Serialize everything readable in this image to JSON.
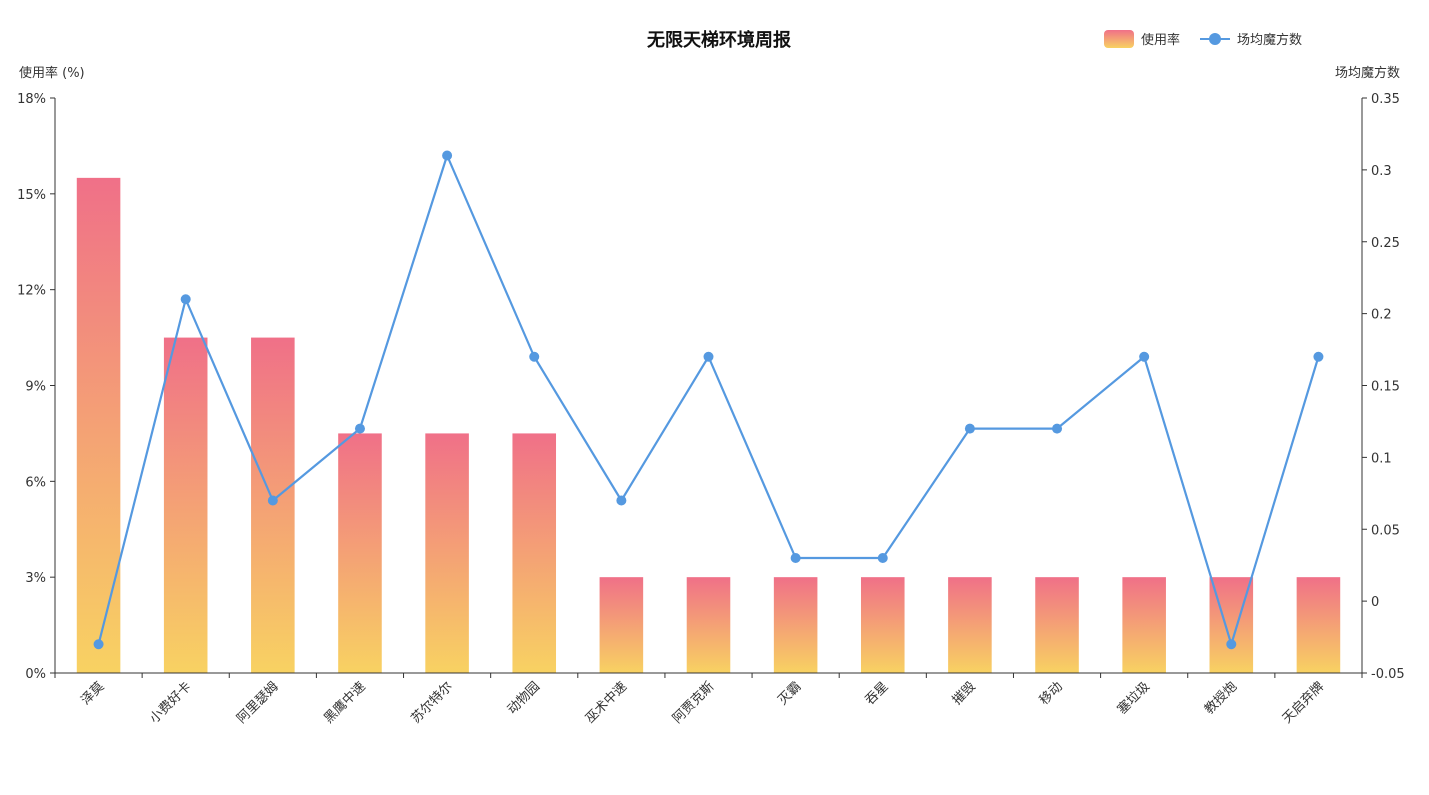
{
  "chart_data": {
    "type": "bar",
    "title": "无限天梯环境周报",
    "categories": [
      "泽莫",
      "小费好卡",
      "阿里瑟姆",
      "黑鹰中速",
      "苏尔特尔",
      "动物园",
      "巫术中速",
      "阿贾克斯",
      "灭霸",
      "吞星",
      "摧毁",
      "移动",
      "塞垃圾",
      "教授炮",
      "天启弃牌"
    ],
    "series": [
      {
        "name": "使用率",
        "type": "bar",
        "axis": "left",
        "values": [
          15.5,
          10.5,
          10.5,
          7.5,
          7.5,
          7.5,
          3.0,
          3.0,
          3.0,
          3.0,
          3.0,
          3.0,
          3.0,
          3.0,
          3.0
        ]
      },
      {
        "name": "场均魔方数",
        "type": "line",
        "axis": "right",
        "values": [
          -0.03,
          0.21,
          0.07,
          0.12,
          0.31,
          0.17,
          0.07,
          0.17,
          0.03,
          0.03,
          0.12,
          0.12,
          0.17,
          -0.03,
          0.17
        ]
      }
    ],
    "y_left": {
      "label": "使用率 (%)",
      "ylim": [
        0,
        18
      ],
      "ticks": [
        0,
        3,
        6,
        9,
        12,
        15,
        18
      ],
      "tick_labels": [
        "0%",
        "3%",
        "6%",
        "9%",
        "12%",
        "15%",
        "18%"
      ]
    },
    "y_right": {
      "label": "场均魔方数",
      "ylim": [
        -0.05,
        0.35
      ],
      "ticks": [
        -0.05,
        0,
        0.05,
        0.1,
        0.15,
        0.2,
        0.25,
        0.3,
        0.35
      ],
      "tick_labels": [
        "-0.05",
        "0",
        "0.05",
        "0.1",
        "0.15",
        "0.2",
        "0.25",
        "0.3",
        "0.35"
      ]
    },
    "grid": false,
    "legend_position": "top-right",
    "colors": {
      "bar_top": "#f07088",
      "bar_bottom": "#f8d262",
      "line": "#5599e0",
      "axis": "#333333",
      "title": "#111111"
    }
  }
}
